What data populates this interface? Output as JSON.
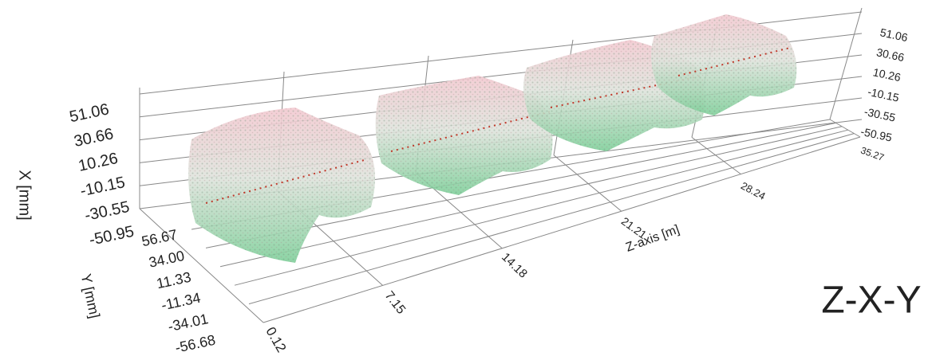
{
  "chart_data": {
    "type": "scatter3d",
    "x_label": "X [mm]",
    "y_label": "Y [mm]",
    "z_label": "Z-axis [m]",
    "annotation": "Z-X-Y",
    "annotation_color": "#0000ff",
    "xlim": [
      -50.95,
      51.06
    ],
    "xticks": [
      51.06,
      30.66,
      10.26,
      -10.15,
      -30.55,
      -50.95
    ],
    "ylim": [
      -56.68,
      56.67
    ],
    "yticks": [
      56.67,
      {
        "value": 34,
        "label": "34.00"
      },
      11.33,
      -11.34,
      -34.01,
      -56.68
    ],
    "zlim": [
      0.12,
      35.27
    ],
    "zticks": [
      0.12,
      7.15,
      14.18,
      21.21,
      28.24,
      35.27
    ],
    "grid": true
  }
}
